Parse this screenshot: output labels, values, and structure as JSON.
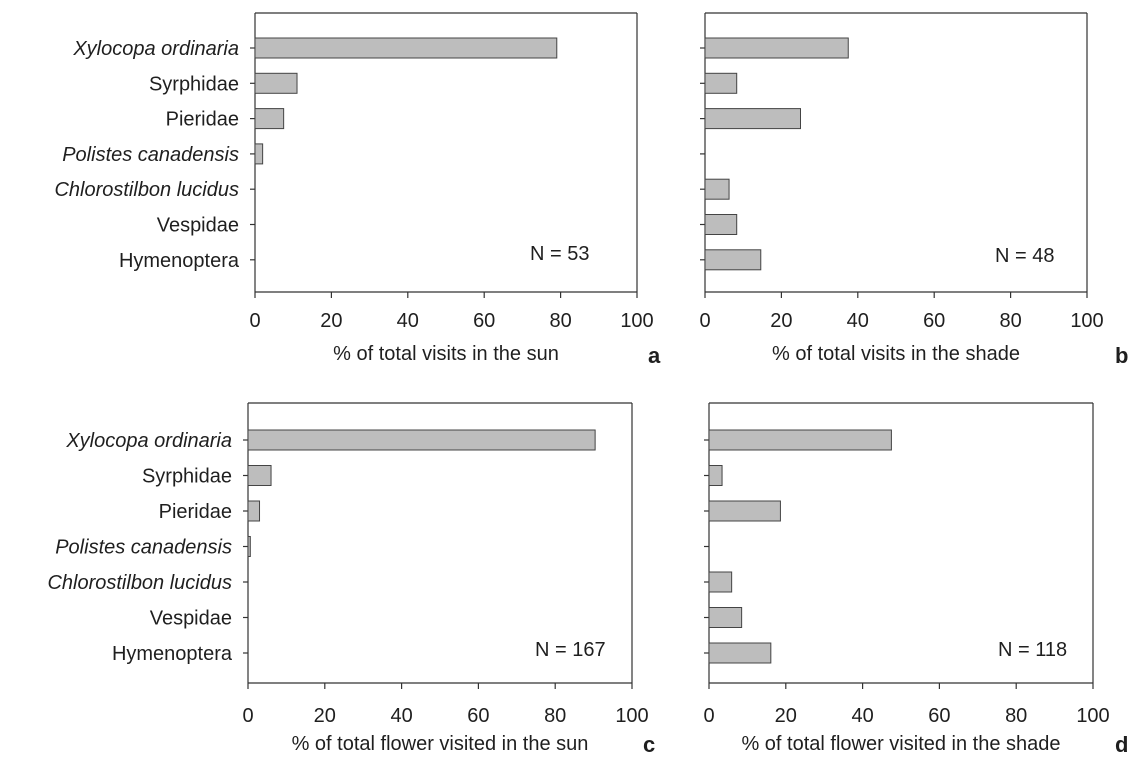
{
  "colors": {
    "bar_fill": "#bdbdbd",
    "bar_stroke": "#444444",
    "axis": "#333333"
  },
  "chart_data": [
    {
      "type": "bar",
      "orientation": "horizontal",
      "panel_label": "a",
      "xlabel": "% of total visits in the sun",
      "categories": [
        "Xylocopa ordinaria",
        "Syrphidae",
        "Pieridae",
        "Polistes canadensis",
        "Chlorostilbon lucidus",
        "Vespidae",
        "Hymenoptera"
      ],
      "values": [
        79,
        11,
        7.5,
        2,
        0,
        0,
        0
      ],
      "xlim": [
        0,
        100
      ],
      "xticks": [
        0,
        20,
        40,
        60,
        80,
        100
      ],
      "annotation": "N = 53",
      "show_categories": true
    },
    {
      "type": "bar",
      "orientation": "horizontal",
      "panel_label": "b",
      "xlabel": "% of total visits in the shade",
      "categories": [
        "Xylocopa ordinaria",
        "Syrphidae",
        "Pieridae",
        "Polistes canadensis",
        "Chlorostilbon lucidus",
        "Vespidae",
        "Hymenoptera"
      ],
      "values": [
        37.5,
        8.3,
        25,
        0,
        6.3,
        8.3,
        14.6
      ],
      "xlim": [
        0,
        100
      ],
      "xticks": [
        0,
        20,
        40,
        60,
        80,
        100
      ],
      "annotation": "N = 48",
      "show_categories": false
    },
    {
      "type": "bar",
      "orientation": "horizontal",
      "panel_label": "c",
      "xlabel": "% of total flower visited in the sun",
      "categories": [
        "Xylocopa ordinaria",
        "Syrphidae",
        "Pieridae",
        "Polistes canadensis",
        "Chlorostilbon lucidus",
        "Vespidae",
        "Hymenoptera"
      ],
      "values": [
        90.4,
        6,
        3,
        0.6,
        0,
        0,
        0
      ],
      "xlim": [
        0,
        100
      ],
      "xticks": [
        0,
        20,
        40,
        60,
        80,
        100
      ],
      "annotation": "N = 167",
      "show_categories": true
    },
    {
      "type": "bar",
      "orientation": "horizontal",
      "panel_label": "d",
      "xlabel": "% of total flower visited in the shade",
      "categories": [
        "Xylocopa ordinaria",
        "Syrphidae",
        "Pieridae",
        "Polistes canadensis",
        "Chlorostilbon lucidus",
        "Vespidae",
        "Hymenoptera"
      ],
      "values": [
        47.5,
        3.4,
        18.6,
        0,
        5.9,
        8.5,
        16.1
      ],
      "xlim": [
        0,
        100
      ],
      "xticks": [
        0,
        20,
        40,
        60,
        80,
        100
      ],
      "annotation": "N = 118",
      "show_categories": false
    }
  ]
}
